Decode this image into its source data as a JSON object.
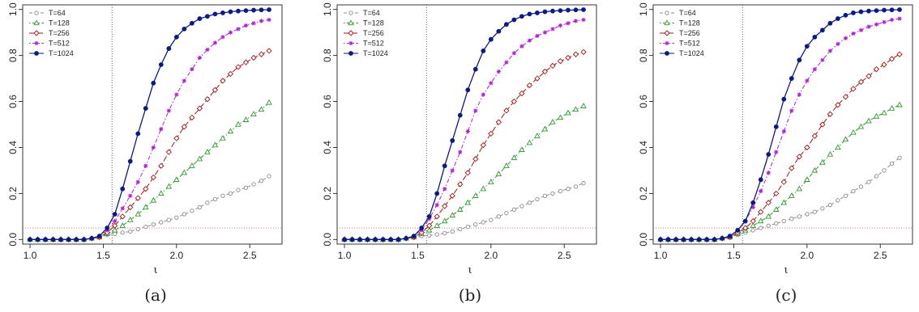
{
  "colors": {
    "T=64": "#8c8c8c",
    "T=128": "#2e9a2e",
    "T=256": "#a31515",
    "T=512": "#b21fd6",
    "T=1024": "#0c1a86",
    "reference_hline": "#ff5a5a",
    "reference_vline": "#555555"
  },
  "chart_data": [
    {
      "type": "line",
      "caption": "(a)",
      "xlabel": "ι",
      "ylabel": "",
      "xlim": [
        0.95,
        2.72
      ],
      "ylim": [
        -0.02,
        1.02
      ],
      "xticks": [
        1.0,
        1.5,
        2.0,
        2.5
      ],
      "xtick_labels": [
        "1.0",
        "1.5",
        "2.0",
        "2.5"
      ],
      "yticks": [
        0.0,
        0.2,
        0.4,
        0.6,
        0.8,
        1.0
      ],
      "ytick_labels": [
        "0.0",
        "0.2",
        "0.4",
        "0.6",
        "0.8",
        "1.0"
      ],
      "grid": false,
      "legend_position": "top-left",
      "reference_lines": {
        "vline_x": 1.56,
        "hline_y": 0.05
      },
      "x": [
        1.0,
        1.0526,
        1.1053,
        1.1579,
        1.2105,
        1.2632,
        1.3158,
        1.3684,
        1.4211,
        1.4737,
        1.5263,
        1.5789,
        1.6316,
        1.6842,
        1.7368,
        1.7895,
        1.8421,
        1.8947,
        1.9474,
        2.0,
        2.0526,
        2.1053,
        2.1579,
        2.2105,
        2.2632,
        2.3158,
        2.3684,
        2.4211,
        2.4737,
        2.5263,
        2.5789,
        2.6316
      ],
      "series": [
        {
          "name": "T=64",
          "marker": "circle-open",
          "dash": "dashed",
          "values": [
            0.0,
            0.0,
            0.0,
            0.0,
            0.0,
            0.0,
            0.0,
            0.0,
            0.005,
            0.01,
            0.02,
            0.025,
            0.03,
            0.035,
            0.045,
            0.055,
            0.065,
            0.075,
            0.085,
            0.095,
            0.11,
            0.125,
            0.14,
            0.16,
            0.175,
            0.19,
            0.2,
            0.215,
            0.225,
            0.24,
            0.255,
            0.275
          ]
        },
        {
          "name": "T=128",
          "marker": "triangle-open",
          "dash": "dotdash",
          "values": [
            0.0,
            0.0,
            0.0,
            0.0,
            0.0,
            0.0,
            0.0,
            0.0,
            0.005,
            0.01,
            0.025,
            0.04,
            0.06,
            0.085,
            0.11,
            0.14,
            0.17,
            0.2,
            0.23,
            0.26,
            0.29,
            0.32,
            0.35,
            0.38,
            0.41,
            0.44,
            0.47,
            0.5,
            0.52,
            0.545,
            0.565,
            0.595
          ]
        },
        {
          "name": "T=256",
          "marker": "diamond-open",
          "dash": "longdash",
          "values": [
            0.0,
            0.0,
            0.0,
            0.0,
            0.0,
            0.0,
            0.0,
            0.0,
            0.005,
            0.01,
            0.03,
            0.06,
            0.1,
            0.14,
            0.18,
            0.22,
            0.27,
            0.32,
            0.38,
            0.44,
            0.49,
            0.53,
            0.57,
            0.61,
            0.65,
            0.69,
            0.72,
            0.75,
            0.77,
            0.79,
            0.805,
            0.82
          ]
        },
        {
          "name": "T=512",
          "marker": "asterisk",
          "dash": "dotdash",
          "values": [
            0.0,
            0.0,
            0.0,
            0.0,
            0.0,
            0.0,
            0.0,
            0.0,
            0.005,
            0.015,
            0.04,
            0.08,
            0.135,
            0.19,
            0.25,
            0.32,
            0.4,
            0.48,
            0.56,
            0.63,
            0.69,
            0.74,
            0.79,
            0.825,
            0.855,
            0.88,
            0.9,
            0.915,
            0.93,
            0.94,
            0.95,
            0.955
          ]
        },
        {
          "name": "T=1024",
          "marker": "circle-filled",
          "dash": "solid",
          "values": [
            0.0,
            0.0,
            0.0,
            0.0,
            0.0,
            0.0,
            0.0,
            0.0,
            0.005,
            0.015,
            0.05,
            0.11,
            0.22,
            0.34,
            0.46,
            0.57,
            0.68,
            0.76,
            0.83,
            0.88,
            0.915,
            0.94,
            0.96,
            0.97,
            0.98,
            0.985,
            0.99,
            0.993,
            0.995,
            0.997,
            0.998,
            0.999
          ]
        }
      ]
    },
    {
      "type": "line",
      "caption": "(b)",
      "xlabel": "ι",
      "ylabel": "",
      "xlim": [
        0.95,
        2.72
      ],
      "ylim": [
        -0.02,
        1.02
      ],
      "xticks": [
        1.0,
        1.5,
        2.0,
        2.5
      ],
      "xtick_labels": [
        "1.0",
        "1.5",
        "2.0",
        "2.5"
      ],
      "yticks": [
        0.0,
        0.2,
        0.4,
        0.6,
        0.8,
        1.0
      ],
      "ytick_labels": [
        "0.0",
        "0.2",
        "0.4",
        "0.6",
        "0.8",
        "1.0"
      ],
      "grid": false,
      "legend_position": "top-left",
      "reference_lines": {
        "vline_x": 1.56,
        "hline_y": 0.05
      },
      "x": [
        1.0,
        1.0526,
        1.1053,
        1.1579,
        1.2105,
        1.2632,
        1.3158,
        1.3684,
        1.4211,
        1.4737,
        1.5263,
        1.5789,
        1.6316,
        1.6842,
        1.7368,
        1.7895,
        1.8421,
        1.8947,
        1.9474,
        2.0,
        2.0526,
        2.1053,
        2.1579,
        2.2105,
        2.2632,
        2.3158,
        2.3684,
        2.4211,
        2.4737,
        2.5263,
        2.5789,
        2.6316
      ],
      "series": [
        {
          "name": "T=64",
          "marker": "circle-open",
          "dash": "dashed",
          "values": [
            0.0,
            0.0,
            0.0,
            0.0,
            0.0,
            0.0,
            0.0,
            0.0,
            0.005,
            0.008,
            0.015,
            0.018,
            0.022,
            0.028,
            0.035,
            0.045,
            0.055,
            0.065,
            0.075,
            0.085,
            0.1,
            0.115,
            0.13,
            0.145,
            0.16,
            0.175,
            0.19,
            0.2,
            0.21,
            0.22,
            0.23,
            0.245
          ]
        },
        {
          "name": "T=128",
          "marker": "triangle-open",
          "dash": "dotdash",
          "values": [
            0.0,
            0.0,
            0.0,
            0.0,
            0.0,
            0.0,
            0.0,
            0.0,
            0.005,
            0.01,
            0.025,
            0.04,
            0.06,
            0.08,
            0.105,
            0.13,
            0.16,
            0.19,
            0.22,
            0.25,
            0.285,
            0.32,
            0.355,
            0.39,
            0.42,
            0.45,
            0.48,
            0.51,
            0.53,
            0.55,
            0.565,
            0.58
          ]
        },
        {
          "name": "T=256",
          "marker": "diamond-open",
          "dash": "longdash",
          "values": [
            0.0,
            0.0,
            0.0,
            0.0,
            0.0,
            0.0,
            0.0,
            0.0,
            0.005,
            0.01,
            0.03,
            0.06,
            0.1,
            0.145,
            0.19,
            0.24,
            0.29,
            0.35,
            0.41,
            0.46,
            0.51,
            0.56,
            0.6,
            0.635,
            0.67,
            0.7,
            0.73,
            0.755,
            0.775,
            0.79,
            0.805,
            0.815
          ]
        },
        {
          "name": "T=512",
          "marker": "asterisk",
          "dash": "dotdash",
          "values": [
            0.0,
            0.0,
            0.0,
            0.0,
            0.0,
            0.0,
            0.0,
            0.0,
            0.005,
            0.015,
            0.04,
            0.09,
            0.15,
            0.22,
            0.3,
            0.38,
            0.47,
            0.56,
            0.63,
            0.68,
            0.73,
            0.77,
            0.81,
            0.84,
            0.865,
            0.885,
            0.9,
            0.915,
            0.93,
            0.94,
            0.95,
            0.955
          ]
        },
        {
          "name": "T=1024",
          "marker": "circle-filled",
          "dash": "solid",
          "values": [
            0.0,
            0.0,
            0.0,
            0.0,
            0.0,
            0.0,
            0.0,
            0.0,
            0.005,
            0.015,
            0.05,
            0.1,
            0.2,
            0.32,
            0.43,
            0.54,
            0.65,
            0.74,
            0.82,
            0.87,
            0.905,
            0.935,
            0.955,
            0.97,
            0.98,
            0.985,
            0.99,
            0.993,
            0.995,
            0.997,
            0.998,
            0.999
          ]
        }
      ]
    },
    {
      "type": "line",
      "caption": "(c)",
      "xlabel": "ι",
      "ylabel": "",
      "xlim": [
        0.95,
        2.72
      ],
      "ylim": [
        -0.02,
        1.02
      ],
      "xticks": [
        1.0,
        1.5,
        2.0,
        2.5
      ],
      "xtick_labels": [
        "1.0",
        "1.5",
        "2.0",
        "2.5"
      ],
      "yticks": [
        0.0,
        0.2,
        0.4,
        0.6,
        0.8,
        1.0
      ],
      "ytick_labels": [
        "0.0",
        "0.2",
        "0.4",
        "0.6",
        "0.8",
        "1.0"
      ],
      "grid": false,
      "legend_position": "top-left",
      "reference_lines": {
        "vline_x": 1.56,
        "hline_y": 0.05
      },
      "x": [
        1.0,
        1.0526,
        1.1053,
        1.1579,
        1.2105,
        1.2632,
        1.3158,
        1.3684,
        1.4211,
        1.4737,
        1.5263,
        1.5789,
        1.6316,
        1.6842,
        1.7368,
        1.7895,
        1.8421,
        1.8947,
        1.9474,
        2.0,
        2.0526,
        2.1053,
        2.1579,
        2.2105,
        2.2632,
        2.3158,
        2.3684,
        2.4211,
        2.4737,
        2.5263,
        2.5789,
        2.6316
      ],
      "series": [
        {
          "name": "T=64",
          "marker": "circle-open",
          "dash": "dashed",
          "values": [
            0.0,
            0.0,
            0.0,
            0.0,
            0.0,
            0.0,
            0.0,
            0.0,
            0.005,
            0.01,
            0.02,
            0.03,
            0.04,
            0.05,
            0.06,
            0.07,
            0.08,
            0.09,
            0.1,
            0.11,
            0.12,
            0.135,
            0.15,
            0.17,
            0.19,
            0.21,
            0.23,
            0.25,
            0.275,
            0.3,
            0.33,
            0.355
          ]
        },
        {
          "name": "T=128",
          "marker": "triangle-open",
          "dash": "dotdash",
          "values": [
            0.0,
            0.0,
            0.0,
            0.0,
            0.0,
            0.0,
            0.0,
            0.0,
            0.005,
            0.01,
            0.025,
            0.04,
            0.06,
            0.08,
            0.1,
            0.13,
            0.16,
            0.19,
            0.22,
            0.26,
            0.3,
            0.335,
            0.37,
            0.4,
            0.435,
            0.465,
            0.49,
            0.515,
            0.535,
            0.55,
            0.57,
            0.585
          ]
        },
        {
          "name": "T=256",
          "marker": "diamond-open",
          "dash": "longdash",
          "values": [
            0.0,
            0.0,
            0.0,
            0.0,
            0.0,
            0.0,
            0.0,
            0.0,
            0.005,
            0.01,
            0.03,
            0.05,
            0.08,
            0.12,
            0.16,
            0.2,
            0.25,
            0.31,
            0.36,
            0.4,
            0.45,
            0.5,
            0.545,
            0.585,
            0.62,
            0.655,
            0.685,
            0.71,
            0.74,
            0.76,
            0.785,
            0.805
          ]
        },
        {
          "name": "T=512",
          "marker": "asterisk",
          "dash": "dotdash",
          "values": [
            0.0,
            0.0,
            0.0,
            0.0,
            0.0,
            0.0,
            0.0,
            0.0,
            0.005,
            0.015,
            0.04,
            0.08,
            0.14,
            0.21,
            0.29,
            0.38,
            0.47,
            0.56,
            0.63,
            0.69,
            0.74,
            0.78,
            0.82,
            0.85,
            0.875,
            0.895,
            0.91,
            0.925,
            0.935,
            0.945,
            0.955,
            0.96
          ]
        },
        {
          "name": "T=1024",
          "marker": "circle-filled",
          "dash": "solid",
          "values": [
            0.0,
            0.0,
            0.0,
            0.0,
            0.0,
            0.0,
            0.0,
            0.0,
            0.005,
            0.015,
            0.04,
            0.08,
            0.16,
            0.26,
            0.37,
            0.49,
            0.61,
            0.7,
            0.78,
            0.84,
            0.88,
            0.91,
            0.94,
            0.96,
            0.975,
            0.985,
            0.99,
            0.993,
            0.995,
            0.997,
            0.998,
            0.999
          ]
        }
      ]
    }
  ]
}
